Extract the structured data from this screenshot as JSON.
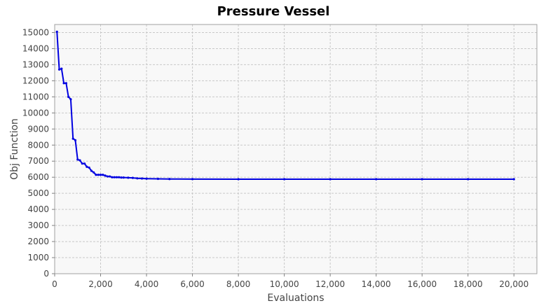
{
  "chart_data": {
    "type": "line",
    "title": "Pressure Vessel",
    "xlabel": "Evaluations",
    "ylabel": "Obj Function",
    "xlim": [
      0,
      21000
    ],
    "ylim": [
      0,
      15500
    ],
    "xticks": [
      0,
      2000,
      4000,
      6000,
      8000,
      10000,
      12000,
      14000,
      16000,
      18000,
      20000
    ],
    "xtick_labels": [
      "0",
      "2,000",
      "4,000",
      "6,000",
      "8,000",
      "10,000",
      "12,000",
      "14,000",
      "16,000",
      "18,000",
      "20,000"
    ],
    "yticks": [
      0,
      1000,
      2000,
      3000,
      4000,
      5000,
      6000,
      7000,
      8000,
      9000,
      10000,
      11000,
      12000,
      13000,
      14000,
      15000
    ],
    "ytick_labels": [
      "0",
      "1000",
      "2000",
      "3000",
      "4000",
      "5000",
      "6000",
      "7000",
      "8000",
      "9000",
      "10000",
      "11000",
      "12000",
      "13000",
      "14000",
      "15000"
    ],
    "grid": true,
    "background": "#f8f8f8",
    "series_color": "#0000e0",
    "series": [
      {
        "x": [
          100,
          200,
          300,
          400,
          500,
          600,
          700,
          800,
          900,
          1000,
          1100,
          1200,
          1300,
          1400,
          1500,
          1600,
          1700,
          1800,
          1900,
          2000,
          2100,
          2200,
          2300,
          2400,
          2500,
          2600,
          2700,
          2800,
          2900,
          3000,
          3200,
          3400,
          3600,
          3800,
          4000,
          4500,
          5000,
          6000,
          8000,
          10000,
          12000,
          14000,
          16000,
          18000,
          20000
        ],
        "y": [
          15050,
          12700,
          12750,
          11850,
          11850,
          11000,
          10850,
          8400,
          8300,
          7100,
          7050,
          6850,
          6850,
          6650,
          6600,
          6400,
          6300,
          6150,
          6150,
          6150,
          6150,
          6100,
          6050,
          6050,
          6000,
          6000,
          6000,
          6000,
          5980,
          5980,
          5970,
          5960,
          5930,
          5920,
          5910,
          5900,
          5890,
          5885,
          5880,
          5880,
          5880,
          5880,
          5880,
          5880,
          5880
        ]
      }
    ]
  }
}
